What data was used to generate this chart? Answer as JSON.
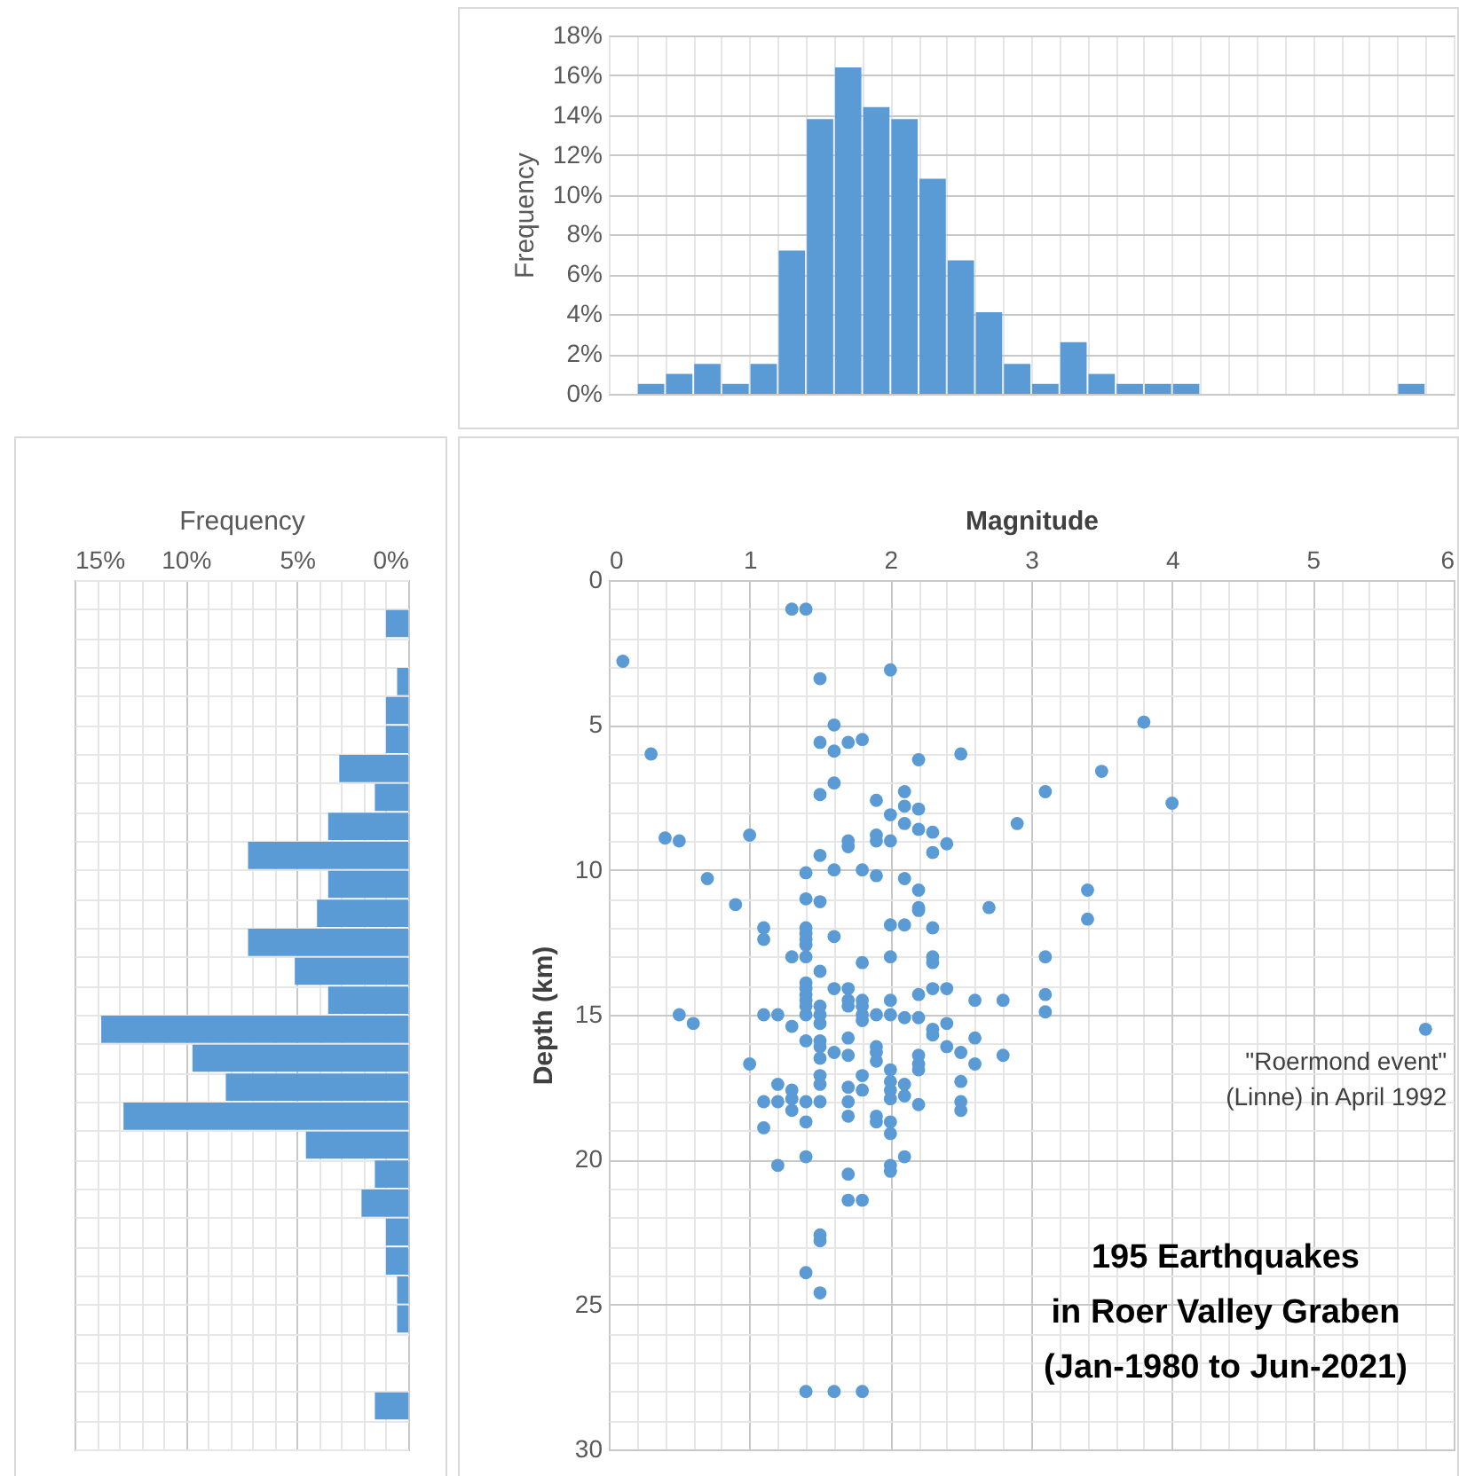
{
  "chart_data": [
    {
      "type": "histogram",
      "ylabel": "Frequency",
      "color": "#5b9bd5",
      "grid": true,
      "tick_labels": "y",
      "bins": [
        0,
        0.2,
        0.4,
        0.6,
        0.8,
        1,
        1.2,
        1.4,
        1.6,
        1.8,
        2,
        2.2,
        2.4,
        2.6,
        2.8,
        3,
        3.2,
        3.4,
        3.6,
        3.8,
        4,
        4.2,
        4.4,
        4.6,
        4.8,
        5,
        5.2,
        5.4,
        5.6,
        5.8,
        6
      ],
      "values": [
        0,
        0.5,
        1.0,
        1.5,
        0.5,
        1.5,
        7.2,
        13.8,
        16.4,
        14.4,
        13.8,
        10.8,
        6.7,
        4.1,
        1.5,
        0.5,
        2.6,
        1.0,
        0.5,
        0.5,
        0.5,
        0,
        0,
        0,
        0,
        0,
        0,
        0,
        0.5,
        0
      ],
      "xlim": [
        0,
        6
      ],
      "ylim": [
        0,
        18
      ],
      "yticks": [
        {
          "value": 0,
          "label": "0%"
        },
        {
          "value": 2,
          "label": "2%"
        },
        {
          "value": 4,
          "label": "4%"
        },
        {
          "value": 6,
          "label": "6%"
        },
        {
          "value": 8,
          "label": "8%"
        },
        {
          "value": 10,
          "label": "10%"
        },
        {
          "value": 12,
          "label": "12%"
        },
        {
          "value": 14,
          "label": "14%"
        },
        {
          "value": 16,
          "label": "16%"
        },
        {
          "value": 18,
          "label": "18%"
        }
      ]
    },
    {
      "type": "histogram",
      "orientation": "horizontal",
      "xlabel": "Frequency",
      "color": "#5b9bd5",
      "grid": true,
      "tick_labels": "x",
      "bins": [
        0,
        1,
        2,
        3,
        4,
        5,
        6,
        7,
        8,
        9,
        10,
        11,
        12,
        13,
        14,
        15,
        16,
        17,
        18,
        19,
        20,
        21,
        22,
        23,
        24,
        25,
        26,
        27,
        28,
        29,
        30
      ],
      "values": [
        0,
        1.0,
        0,
        0.5,
        1.0,
        1.0,
        3.1,
        1.5,
        3.6,
        7.2,
        3.6,
        4.1,
        7.2,
        5.1,
        3.6,
        13.8,
        9.7,
        8.2,
        12.8,
        4.6,
        1.5,
        2.1,
        1.0,
        1.0,
        0.5,
        0.5,
        0,
        0,
        1.5,
        0
      ],
      "xlim": [
        15,
        0
      ],
      "ylim": [
        30,
        0
      ],
      "xticks": [
        {
          "value": 15,
          "label": "15%"
        },
        {
          "value": 14,
          "label": null
        },
        {
          "value": 13,
          "label": null
        },
        {
          "value": 12,
          "label": null
        },
        {
          "value": 11,
          "label": null
        },
        {
          "value": 10,
          "label": "10%"
        },
        {
          "value": 9,
          "label": null
        },
        {
          "value": 8,
          "label": null
        },
        {
          "value": 7,
          "label": null
        },
        {
          "value": 6,
          "label": null
        },
        {
          "value": 5,
          "label": "5%"
        },
        {
          "value": 4,
          "label": null
        },
        {
          "value": 3,
          "label": null
        },
        {
          "value": 2,
          "label": null
        },
        {
          "value": 1,
          "label": null
        },
        {
          "value": 0,
          "label": "0%"
        }
      ]
    },
    {
      "type": "scatter",
      "xlabel": "Magnitude",
      "ylabel": "Depth (km)",
      "color": "#5b9bd5",
      "grid": true,
      "marker": "circle",
      "x": [
        1.3,
        1.4,
        0.1,
        1.5,
        2.0,
        1.6,
        1.5,
        1.7,
        1.8,
        1.6,
        0.3,
        2.2,
        2.5,
        1.6,
        1.5,
        1.9,
        2.1,
        2.0,
        2.1,
        2.2,
        2.1,
        2.2,
        2.3,
        2.9,
        0.4,
        0.5,
        1.0,
        1.7,
        1.7,
        1.9,
        1.9,
        2.0,
        2.4,
        2.3,
        1.5,
        1.4,
        1.6,
        1.8,
        1.9,
        2.1,
        0.7,
        2.2,
        0.9,
        1.4,
        1.5,
        2.2,
        2.2,
        2.7,
        1.1,
        1.1,
        1.4,
        1.4,
        1.4,
        1.4,
        1.6,
        2.0,
        2.1,
        2.3,
        1.3,
        1.4,
        2.0,
        2.3,
        2.3,
        1.8,
        1.5,
        1.4,
        1.4,
        1.4,
        1.4,
        1.4,
        1.6,
        1.7,
        1.7,
        1.7,
        1.8,
        1.8,
        2.0,
        2.2,
        2.3,
        2.4,
        2.6,
        2.8,
        1.5,
        0.5,
        0.6,
        1.1,
        1.2,
        1.3,
        1.4,
        1.5,
        1.5,
        1.8,
        1.8,
        1.9,
        2.0,
        2.1,
        2.2,
        2.3,
        2.4,
        2.3,
        2.6,
        2.8,
        2.4,
        2.5,
        2.6,
        1.4,
        1.5,
        1.5,
        1.5,
        1.6,
        1.7,
        1.7,
        1.9,
        1.9,
        1.9,
        2.2,
        2.2,
        2.2,
        1.0,
        1.2,
        1.2,
        1.3,
        1.3,
        1.3,
        1.1,
        1.4,
        1.5,
        1.5,
        1.5,
        1.7,
        1.7,
        1.7,
        1.8,
        1.8,
        2.0,
        2.0,
        2.0,
        2.0,
        2.1,
        2.1,
        2.2,
        2.5,
        2.5,
        2.5,
        1.1,
        1.4,
        1.9,
        1.9,
        2.0,
        2.0,
        1.2,
        1.4,
        2.0,
        2.0,
        2.1,
        1.7,
        1.7,
        1.8,
        1.5,
        1.5,
        1.4,
        1.5,
        1.4,
        1.6,
        1.8,
        3.1,
        3.5,
        3.8,
        4.0,
        3.4,
        3.4,
        3.1,
        3.1,
        3.1,
        5.8
      ],
      "values": [
        1.0,
        1.0,
        2.8,
        3.4,
        3.1,
        5.0,
        5.6,
        5.6,
        5.5,
        5.9,
        6.0,
        6.2,
        6.0,
        7.0,
        7.4,
        7.6,
        7.3,
        8.1,
        7.8,
        7.9,
        8.4,
        8.6,
        8.7,
        8.4,
        8.9,
        9.0,
        8.8,
        9.0,
        9.2,
        8.8,
        9.0,
        9.0,
        9.1,
        9.4,
        9.5,
        10.1,
        10.0,
        10.0,
        10.2,
        10.3,
        10.3,
        10.7,
        11.2,
        11.0,
        11.1,
        11.3,
        11.4,
        11.3,
        12.0,
        12.4,
        12.0,
        12.2,
        12.4,
        12.6,
        12.3,
        11.9,
        11.9,
        12.0,
        13.0,
        13.0,
        13.0,
        13.0,
        13.2,
        13.2,
        13.5,
        13.9,
        14.1,
        14.3,
        14.5,
        14.7,
        14.1,
        14.1,
        14.5,
        14.7,
        14.5,
        14.7,
        14.5,
        14.3,
        14.1,
        14.1,
        14.5,
        14.5,
        14.7,
        15.0,
        15.3,
        15.0,
        15.0,
        15.4,
        15.0,
        15.0,
        15.3,
        15.0,
        15.2,
        15.0,
        15.0,
        15.1,
        15.1,
        15.5,
        15.3,
        15.7,
        15.8,
        16.4,
        16.1,
        16.3,
        16.7,
        15.9,
        15.9,
        16.1,
        16.5,
        16.3,
        15.8,
        16.4,
        16.1,
        16.3,
        16.6,
        16.4,
        16.7,
        16.9,
        16.7,
        17.4,
        18.0,
        17.6,
        17.9,
        18.3,
        18.0,
        18.0,
        17.1,
        17.4,
        18.0,
        17.5,
        18.0,
        18.5,
        17.1,
        17.6,
        16.9,
        17.3,
        17.6,
        17.9,
        17.4,
        17.8,
        18.1,
        17.3,
        18.0,
        18.3,
        18.9,
        18.7,
        18.5,
        18.7,
        18.7,
        19.1,
        20.2,
        19.9,
        20.2,
        20.4,
        19.9,
        20.5,
        21.4,
        21.4,
        22.6,
        22.8,
        23.9,
        24.6,
        28.0,
        28.0,
        28.0,
        7.3,
        6.6,
        4.9,
        7.7,
        10.7,
        11.7,
        13.0,
        14.3,
        14.9,
        15.5
      ],
      "xlim": [
        0,
        6
      ],
      "ylim": [
        30,
        0
      ],
      "xticks": [
        0,
        {
          "value": 0.2,
          "label": null
        },
        {
          "value": 0.4,
          "label": null
        },
        {
          "value": 0.6,
          "label": null
        },
        {
          "value": 0.8,
          "label": null
        },
        1,
        {
          "value": 1.2,
          "label": null
        },
        {
          "value": 1.4,
          "label": null
        },
        {
          "value": 1.6,
          "label": null
        },
        {
          "value": 1.8,
          "label": null
        },
        2,
        {
          "value": 2.2,
          "label": null
        },
        {
          "value": 2.4,
          "label": null
        },
        {
          "value": 2.6,
          "label": null
        },
        {
          "value": 2.8,
          "label": null
        },
        3,
        {
          "value": 3.2,
          "label": null
        },
        {
          "value": 3.4,
          "label": null
        },
        {
          "value": 3.6,
          "label": null
        },
        {
          "value": 3.8,
          "label": null
        },
        4,
        {
          "value": 4.2,
          "label": null
        },
        {
          "value": 4.4,
          "label": null
        },
        {
          "value": 4.6,
          "label": null
        },
        {
          "value": 4.8,
          "label": null
        },
        5,
        {
          "value": 5.2,
          "label": null
        },
        {
          "value": 5.4,
          "label": null
        },
        {
          "value": 5.6,
          "label": null
        },
        {
          "value": 5.8,
          "label": null
        },
        6
      ],
      "yticks": [
        0,
        {
          "value": 1,
          "label": null
        },
        {
          "value": 2,
          "label": null
        },
        {
          "value": 3,
          "label": null
        },
        {
          "value": 4,
          "label": null
        },
        5,
        {
          "value": 6,
          "label": null
        },
        {
          "value": 7,
          "label": null
        },
        {
          "value": 8,
          "label": null
        },
        {
          "value": 9,
          "label": null
        },
        10,
        {
          "value": 11,
          "label": null
        },
        {
          "value": 12,
          "label": null
        },
        {
          "value": 13,
          "label": null
        },
        {
          "value": 14,
          "label": null
        },
        15,
        {
          "value": 16,
          "label": null
        },
        {
          "value": 17,
          "label": null
        },
        {
          "value": 18,
          "label": null
        },
        {
          "value": 19,
          "label": null
        },
        20,
        {
          "value": 21,
          "label": null
        },
        {
          "value": 22,
          "label": null
        },
        {
          "value": 23,
          "label": null
        },
        {
          "value": 24,
          "label": null
        },
        25,
        {
          "value": 26,
          "label": null
        },
        {
          "value": 27,
          "label": null
        },
        {
          "value": 28,
          "label": null
        },
        {
          "value": 29,
          "label": null
        },
        30
      ],
      "annotations": [
        {
          "text": "\"Roermond event\"\n(Linne)  in April 1992",
          "x": 5.8,
          "y": 15.5
        },
        "195 Earthquakes\nin Roer Valley Graben\n(Jan-1980 to Jun-2021)"
      ]
    }
  ]
}
